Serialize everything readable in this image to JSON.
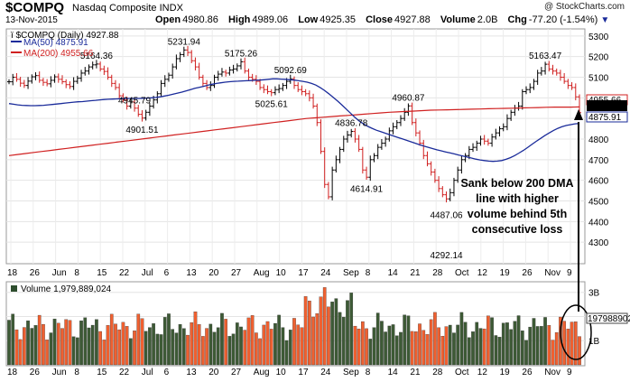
{
  "header": {
    "symbol": "$COMPQ",
    "name": "Nasdaq Composite",
    "exchange": "INDX",
    "date": "13-Nov-2015",
    "brand": "@ StockCharts.com",
    "open_label": "Open",
    "open": "4980.86",
    "high_label": "High",
    "high": "4989.06",
    "low_label": "Low",
    "low": "4925.35",
    "close_label": "Close",
    "close": "4927.88",
    "volume_label": "Volume",
    "volume": "2.0B",
    "chg_label": "Chg",
    "chg": "-77.20 (-1.54%)"
  },
  "legend": {
    "price_label": "$COMPQ (Daily) 4927.88",
    "ma50_label": "MA(50) 4875.91",
    "ma200_label": "MA(200) 4955.66",
    "volume_label": "Volume 1,979,889,024"
  },
  "annotation": [
    "Sank below 200 DMA",
    "line with higher",
    "volume behind 5th",
    "consecutive loss"
  ],
  "chart_data": {
    "type": "line",
    "title": "$COMPQ (Daily) 4927.88",
    "y_ticks": [
      4300,
      4400,
      4500,
      4600,
      4700,
      4800,
      4900,
      5000,
      5100,
      5200,
      5300
    ],
    "ylim": [
      4200,
      5330
    ],
    "x_tick_labels": [
      "18",
      "26",
      "Jun",
      "8",
      "15",
      "22",
      "Jul",
      "6",
      "13",
      "20",
      "27",
      "Aug",
      "10",
      "17",
      "24",
      "Sep",
      "8",
      "14",
      "21",
      "28",
      "Oct",
      "12",
      "19",
      "26",
      "Nov",
      "9"
    ],
    "price_annotations": [
      "5164.36",
      "5231.94",
      "5175.26",
      "5092.69",
      "5025.61",
      "4901.51",
      "4945.79",
      "4836.78",
      "4960.87",
      "4614.91",
      "4292.14",
      "4487.06",
      "5163.47"
    ],
    "current_labels": {
      "ma200": "4955.66",
      "close": "4927.88",
      "ma50": "4875.91"
    },
    "close": [
      5078,
      5100,
      5090,
      5071,
      5060,
      5081,
      5102,
      5108,
      5085,
      5075,
      5068,
      5085,
      5102,
      5090,
      5078,
      5064,
      5055,
      5080,
      5095,
      5120,
      5130,
      5150,
      5160,
      5164,
      5140,
      5128,
      5100,
      5070,
      5050,
      5010,
      4990,
      4960,
      4980,
      4950,
      4920,
      4902,
      4930,
      4960,
      4990,
      5020,
      5070,
      5090,
      5110,
      5150,
      5190,
      5210,
      5232,
      5220,
      5180,
      5150,
      5100,
      5070,
      5050,
      5060,
      5100,
      5115,
      5125,
      5120,
      5135,
      5140,
      5155,
      5175,
      5130,
      5100,
      5090,
      5080,
      5050,
      5040,
      5030,
      5025,
      5040,
      5045,
      5060,
      5080,
      5092,
      5060,
      5040,
      5030,
      5020,
      5000,
      4960,
      4880,
      4740,
      4580,
      4520,
      4650,
      4700,
      4750,
      4800,
      4820,
      4837,
      4800,
      4750,
      4650,
      4615,
      4700,
      4720,
      4760,
      4780,
      4800,
      4840,
      4860,
      4880,
      4900,
      4930,
      4961,
      4880,
      4830,
      4780,
      4720,
      4680,
      4640,
      4600,
      4560,
      4530,
      4510,
      4540,
      4600,
      4650,
      4700,
      4720,
      4750,
      4760,
      4780,
      4800,
      4790,
      4780,
      4810,
      4830,
      4850,
      4860,
      4900,
      4930,
      4950,
      4960,
      5030,
      5040,
      5050,
      5080,
      5120,
      5130,
      5163,
      5140,
      5130,
      5120,
      5100,
      5080,
      5060,
      5050,
      5005,
      4928
    ],
    "ma50": [
      4972,
      4969,
      4966,
      4964,
      4963,
      4962,
      4962,
      4963,
      4964,
      4966,
      4968,
      4970,
      4972,
      4975,
      4977,
      4979,
      4981,
      4982,
      4984,
      4986,
      4988,
      4990,
      4992,
      4993,
      4994,
      4995,
      4996,
      4997,
      4997,
      4997,
      4997,
      4998,
      4999,
      5000,
      5002,
      5005,
      5009,
      5013,
      5018,
      5023,
      5028,
      5034,
      5040,
      5046,
      5051,
      5056,
      5061,
      5066,
      5070,
      5073,
      5076,
      5078,
      5080,
      5081,
      5082,
      5083,
      5084,
      5085,
      5086,
      5088,
      5090,
      5092,
      5092,
      5091,
      5090,
      5088,
      5086,
      5083,
      5080,
      5076,
      5070,
      5062,
      5050,
      5036,
      5020,
      5003,
      4985,
      4966,
      4946,
      4926,
      4906,
      4888,
      4874,
      4862,
      4852,
      4843,
      4836,
      4829,
      4822,
      4815,
      4808,
      4801,
      4794,
      4787,
      4780,
      4773,
      4766,
      4760,
      4754,
      4748,
      4743,
      4738,
      4733,
      4728,
      4723,
      4718,
      4713,
      4708,
      4703,
      4699,
      4696,
      4693,
      4692,
      4693,
      4696,
      4702,
      4710,
      4720,
      4732,
      4745,
      4759,
      4774,
      4789,
      4803,
      4817,
      4830,
      4842,
      4852,
      4860,
      4866,
      4870,
      4874,
      4876
    ],
    "ma200": [
      4720,
      4725,
      4730,
      4735,
      4740,
      4745,
      4750,
      4755,
      4760,
      4765,
      4770,
      4775,
      4780,
      4785,
      4790,
      4795,
      4800,
      4805,
      4810,
      4815,
      4820,
      4825,
      4830,
      4835,
      4840,
      4845,
      4850,
      4855,
      4860,
      4865,
      4870,
      4875,
      4880,
      4885,
      4890,
      4895,
      4900,
      4903,
      4906,
      4909,
      4912,
      4915,
      4918,
      4921,
      4924,
      4927,
      4930,
      4932,
      4934,
      4936,
      4938,
      4940,
      4941,
      4942,
      4943,
      4944,
      4945,
      4946,
      4947,
      4948,
      4949,
      4950,
      4951,
      4952,
      4953,
      4954,
      4955,
      4955,
      4955,
      4956
    ],
    "volume_ticks": [
      "3B",
      "2B",
      "1B"
    ],
    "volume_current": "1979889024"
  }
}
